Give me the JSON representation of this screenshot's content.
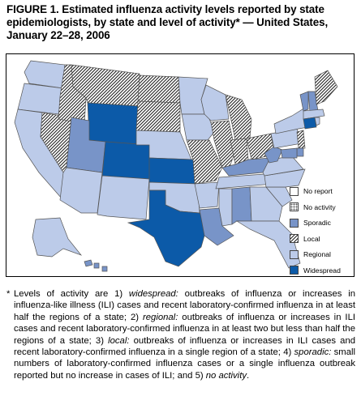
{
  "figure": {
    "title": "FIGURE 1. Estimated influenza activity levels reported by state epidemiologists, by state and level of activity* — United States, January 22–28, 2006"
  },
  "colors": {
    "no_report": "#ffffff",
    "no_activity": "#d8d8d8",
    "sporadic": "#7894c8",
    "local": "#ffffff",
    "local_hatch": "#222222",
    "regional": "#bccbe9",
    "widespread": "#0c5aa8",
    "border": "#555555"
  },
  "legend": [
    {
      "key": "no_report",
      "label": "No report"
    },
    {
      "key": "no_activity",
      "label": "No activity"
    },
    {
      "key": "sporadic",
      "label": "Sporadic"
    },
    {
      "key": "local",
      "label": "Local"
    },
    {
      "key": "regional",
      "label": "Regional"
    },
    {
      "key": "widespread",
      "label": "Widespread"
    }
  ],
  "state_levels": {
    "WA": "regional",
    "OR": "regional",
    "CA": "regional",
    "NV": "local",
    "ID": "local",
    "MT": "local",
    "WY": "widespread",
    "UT": "sporadic",
    "AZ": "regional",
    "CO": "widespread",
    "NM": "regional",
    "ND": "local",
    "SD": "local",
    "NE": "regional",
    "KS": "widespread",
    "OK": "regional",
    "TX": "widespread",
    "MN": "regional",
    "IA": "regional",
    "MO": "local",
    "AR": "regional",
    "LA": "sporadic",
    "WI": "regional",
    "IL": "local",
    "MI": "local",
    "IN": "local",
    "OH": "local",
    "KY": "sporadic",
    "TN": "regional",
    "MS": "regional",
    "AL": "sporadic",
    "GA": "regional",
    "FL": "regional",
    "SC": "regional",
    "NC": "regional",
    "VA": "regional",
    "WV": "sporadic",
    "PA": "regional",
    "NY": "regional",
    "VT": "sporadic",
    "NH": "sporadic",
    "ME": "local",
    "MA": "regional",
    "CT": "widespread",
    "RI": "regional",
    "NJ": "local",
    "DE": "sporadic",
    "MD": "sporadic",
    "AK": "regional",
    "HI": "sporadic"
  },
  "footnote": {
    "star": "*",
    "intro": "Levels of activity are 1) ",
    "t1": "widespread:",
    "d1": " outbreaks of influenza or increases in influenza-like illness (ILI) cases and recent laboratory-confirmed influenza in at least half the regions of a state; 2) ",
    "t2": "regional:",
    "d2": " outbreaks of influenza or increases in ILI cases and recent laboratory-confirmed influenza in at least two but less than half the regions of a state; 3) ",
    "t3": "local:",
    "d3": " outbreaks of influenza or increases in ILI cases and recent laboratory-confirmed influenza in a single region of a state; 4) ",
    "t4": "sporadic:",
    "d4": " small numbers of laboratory-confirmed influenza cases or a single influenza outbreak reported but no increase in cases of ILI; and 5) ",
    "t5": "no activity",
    "end": "."
  }
}
